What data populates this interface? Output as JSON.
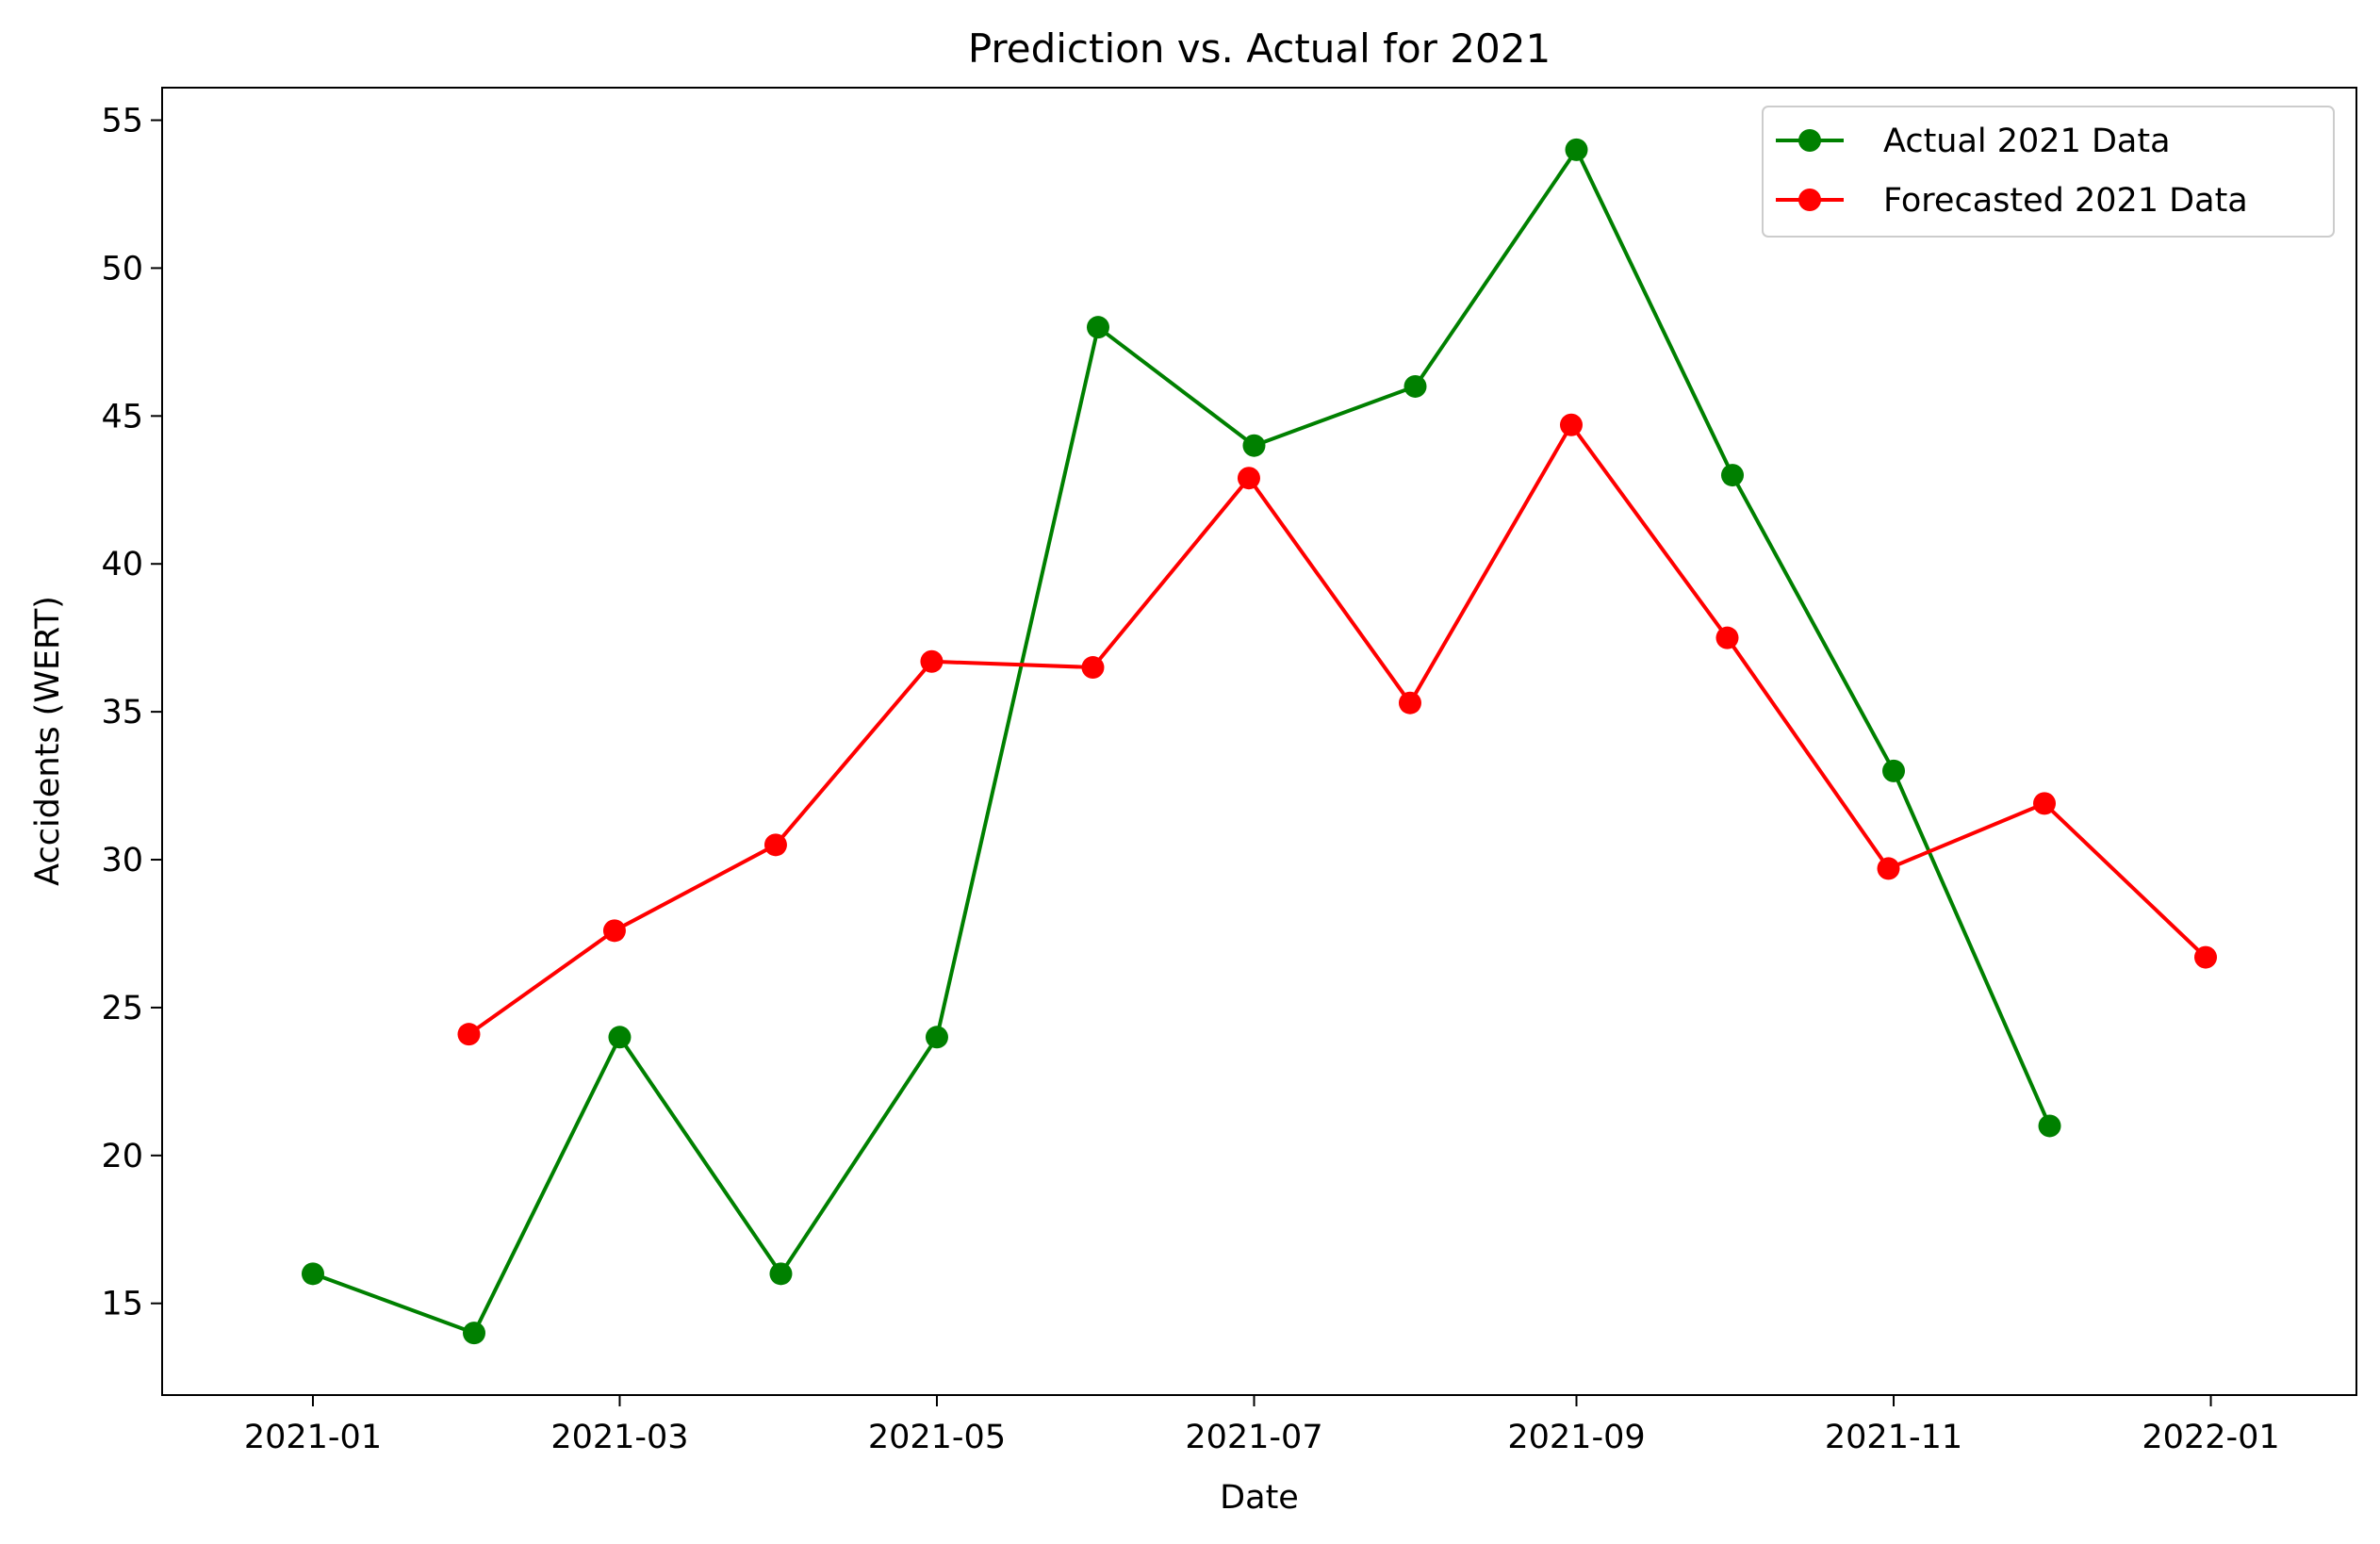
{
  "chart_data": {
    "type": "line",
    "title": "Prediction vs. Actual for 2021",
    "xlabel": "Date",
    "ylabel": "Accidents (WERT)",
    "x_axis_type": "date",
    "xlim": [
      "2020-12-03",
      "2022-01-29"
    ],
    "ylim": [
      11.9,
      56.1
    ],
    "x_ticks": [
      "2021-01",
      "2021-03",
      "2021-05",
      "2021-07",
      "2021-09",
      "2021-11",
      "2022-01"
    ],
    "y_ticks": [
      15,
      20,
      25,
      30,
      35,
      40,
      45,
      50,
      55
    ],
    "grid": false,
    "legend_position": "top-right",
    "series": [
      {
        "name": "Actual 2021 Data",
        "color": "#008000",
        "marker": "circle",
        "x": [
          "2021-01-01",
          "2021-02-01",
          "2021-03-01",
          "2021-04-01",
          "2021-05-01",
          "2021-06-01",
          "2021-07-01",
          "2021-08-01",
          "2021-09-01",
          "2021-10-01",
          "2021-11-01",
          "2021-12-01"
        ],
        "y": [
          16,
          14,
          24,
          16,
          24,
          48,
          44,
          46,
          54,
          43,
          33,
          21
        ]
      },
      {
        "name": "Forecasted 2021 Data",
        "color": "#ff0000",
        "marker": "circle",
        "x": [
          "2021-01-31",
          "2021-02-28",
          "2021-03-31",
          "2021-04-30",
          "2021-05-31",
          "2021-06-30",
          "2021-07-31",
          "2021-08-31",
          "2021-09-30",
          "2021-10-31",
          "2021-11-30",
          "2021-12-31"
        ],
        "y": [
          24.1,
          27.6,
          30.5,
          36.7,
          36.5,
          42.9,
          35.3,
          44.7,
          37.5,
          29.7,
          31.9,
          26.7
        ]
      }
    ]
  }
}
